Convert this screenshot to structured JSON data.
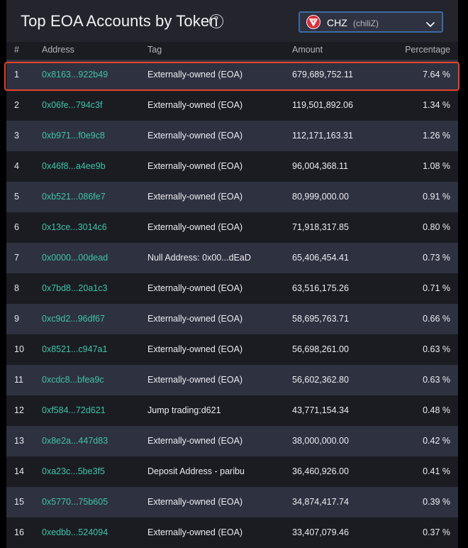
{
  "header": {
    "title": "Top EOA Accounts by Token",
    "help_glyph": "?",
    "token": {
      "symbol": "CHZ",
      "name": "(chiliZ)"
    }
  },
  "columns": {
    "index": "#",
    "address": "Address",
    "tag": "Tag",
    "amount": "Amount",
    "percentage": "Percentage"
  },
  "colors": {
    "address_link": "#3fc3a7",
    "highlight_border": "#e8442a",
    "token_logo": "#d9303a"
  },
  "rows": [
    {
      "index": "1",
      "address": "0x8163...922b49",
      "tag": "Externally-owned (EOA)",
      "amount": "679,689,752.11",
      "percentage": "7.64 %"
    },
    {
      "index": "2",
      "address": "0x06fe...794c3f",
      "tag": "Externally-owned (EOA)",
      "amount": "119,501,892.06",
      "percentage": "1.34 %"
    },
    {
      "index": "3",
      "address": "0xb971...f0e9c8",
      "tag": "Externally-owned (EOA)",
      "amount": "112,171,163.31",
      "percentage": "1.26 %"
    },
    {
      "index": "4",
      "address": "0x46f8...a4ee9b",
      "tag": "Externally-owned (EOA)",
      "amount": "96,004,368.11",
      "percentage": "1.08 %"
    },
    {
      "index": "5",
      "address": "0xb521...086fe7",
      "tag": "Externally-owned (EOA)",
      "amount": "80,999,000.00",
      "percentage": "0.91 %"
    },
    {
      "index": "6",
      "address": "0x13ce...3014c6",
      "tag": "Externally-owned (EOA)",
      "amount": "71,918,317.85",
      "percentage": "0.80 %"
    },
    {
      "index": "7",
      "address": "0x0000...00dead",
      "tag": "Null Address: 0x00...dEaD",
      "amount": "65,406,454.41",
      "percentage": "0.73 %"
    },
    {
      "index": "8",
      "address": "0x7bd8...20a1c3",
      "tag": "Externally-owned (EOA)",
      "amount": "63,516,175.26",
      "percentage": "0.71 %"
    },
    {
      "index": "9",
      "address": "0xc9d2...96df67",
      "tag": "Externally-owned (EOA)",
      "amount": "58,695,763.71",
      "percentage": "0.66 %"
    },
    {
      "index": "10",
      "address": "0x8521...c947a1",
      "tag": "Externally-owned (EOA)",
      "amount": "56,698,261.00",
      "percentage": "0.63 %"
    },
    {
      "index": "11",
      "address": "0xcdc8...bfea9c",
      "tag": "Externally-owned (EOA)",
      "amount": "56,602,362.80",
      "percentage": "0.63 %"
    },
    {
      "index": "12",
      "address": "0xf584...72d621",
      "tag": "Jump trading:d621",
      "amount": "43,771,154.34",
      "percentage": "0.48 %"
    },
    {
      "index": "13",
      "address": "0x8e2a...447d83",
      "tag": "Externally-owned (EOA)",
      "amount": "38,000,000.00",
      "percentage": "0.42 %"
    },
    {
      "index": "14",
      "address": "0xa23c...5be3f5",
      "tag": "Deposit Address - paribu",
      "amount": "36,460,926.00",
      "percentage": "0.41 %"
    },
    {
      "index": "15",
      "address": "0x5770...75b605",
      "tag": "Externally-owned (EOA)",
      "amount": "34,874,417.74",
      "percentage": "0.39 %"
    },
    {
      "index": "16",
      "address": "0xedbb...524094",
      "tag": "Externally-owned (EOA)",
      "amount": "33,407,079.46",
      "percentage": "0.37 %"
    }
  ]
}
